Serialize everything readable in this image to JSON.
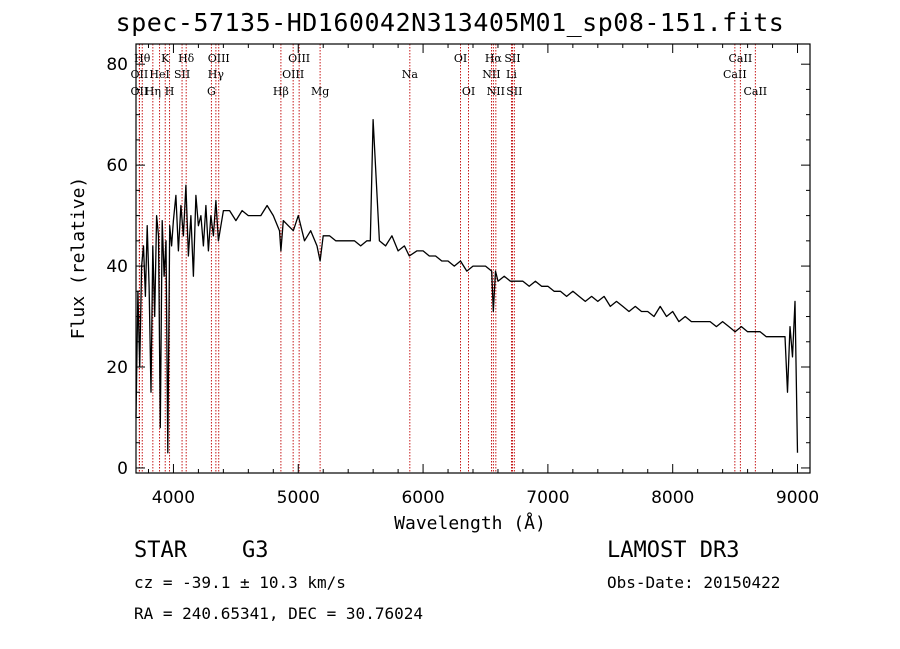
{
  "chart_data": {
    "type": "line",
    "title": "spec-57135-HD160042N313405M01_sp08-151.fits",
    "xlabel": "Wavelength (Å)",
    "ylabel": "Flux (relative)",
    "xlim": [
      3700,
      9100
    ],
    "ylim": [
      -1,
      84
    ],
    "xticks": [
      4000,
      5000,
      6000,
      7000,
      8000,
      9000
    ],
    "yticks": [
      0,
      20,
      40,
      60,
      80
    ],
    "series": [
      {
        "name": "spectrum",
        "x": [
          3700,
          3715,
          3730,
          3745,
          3760,
          3775,
          3790,
          3805,
          3820,
          3835,
          3850,
          3865,
          3880,
          3895,
          3910,
          3925,
          3940,
          3955,
          3970,
          3985,
          4000,
          4020,
          4040,
          4060,
          4080,
          4100,
          4120,
          4140,
          4160,
          4180,
          4200,
          4220,
          4240,
          4260,
          4280,
          4300,
          4320,
          4340,
          4360,
          4380,
          4400,
          4450,
          4500,
          4550,
          4600,
          4650,
          4700,
          4750,
          4800,
          4850,
          4861,
          4880,
          4920,
          4960,
          5000,
          5050,
          5100,
          5150,
          5175,
          5200,
          5250,
          5300,
          5350,
          5400,
          5450,
          5500,
          5550,
          5577,
          5600,
          5650,
          5700,
          5750,
          5800,
          5850,
          5890,
          5950,
          6000,
          6050,
          6100,
          6150,
          6200,
          6250,
          6300,
          6350,
          6400,
          6450,
          6500,
          6550,
          6563,
          6580,
          6600,
          6650,
          6700,
          6750,
          6800,
          6850,
          6900,
          6950,
          7000,
          7050,
          7100,
          7150,
          7200,
          7250,
          7300,
          7350,
          7400,
          7450,
          7500,
          7550,
          7600,
          7650,
          7700,
          7750,
          7800,
          7850,
          7900,
          7950,
          8000,
          8050,
          8100,
          8150,
          8200,
          8250,
          8300,
          8350,
          8400,
          8450,
          8500,
          8550,
          8600,
          8650,
          8700,
          8750,
          8800,
          8850,
          8900,
          8920,
          8940,
          8960,
          8980,
          9000
        ],
        "values": [
          10,
          35,
          20,
          40,
          44,
          34,
          48,
          36,
          15,
          44,
          30,
          50,
          46,
          8,
          49,
          38,
          45,
          3,
          48,
          44,
          49,
          54,
          43,
          52,
          46,
          56,
          42,
          50,
          38,
          54,
          48,
          50,
          44,
          52,
          43,
          50,
          46,
          53,
          45,
          48,
          51,
          51,
          49,
          51,
          50,
          50,
          50,
          52,
          50,
          47,
          43,
          49,
          48,
          47,
          50,
          45,
          47,
          44,
          41,
          46,
          46,
          45,
          45,
          45,
          45,
          44,
          45,
          45,
          69,
          45,
          44,
          46,
          43,
          44,
          42,
          43,
          43,
          42,
          42,
          41,
          41,
          40,
          41,
          39,
          40,
          40,
          40,
          39,
          31,
          39,
          37,
          38,
          37,
          37,
          37,
          36,
          37,
          36,
          36,
          35,
          35,
          34,
          35,
          34,
          33,
          34,
          33,
          34,
          32,
          33,
          32,
          31,
          32,
          31,
          31,
          30,
          32,
          30,
          31,
          29,
          30,
          29,
          29,
          29,
          29,
          28,
          29,
          28,
          27,
          28,
          27,
          27,
          27,
          26,
          26,
          26,
          26,
          15,
          28,
          22,
          33,
          3
        ]
      }
    ],
    "line_markers": [
      {
        "label": "OII",
        "x": 3727,
        "row": 2
      },
      {
        "label": "Hθ",
        "x": 3750,
        "row": 1
      },
      {
        "label": "OII",
        "x": 3727,
        "row": 3
      },
      {
        "label": "Hη",
        "x": 3835,
        "row": 3
      },
      {
        "label": "HeI",
        "x": 3889,
        "row": 2
      },
      {
        "label": "K",
        "x": 3934,
        "row": 1
      },
      {
        "label": "H",
        "x": 3969,
        "row": 3
      },
      {
        "label": "SII",
        "x": 4069,
        "row": 2
      },
      {
        "label": "Hδ",
        "x": 4102,
        "row": 1
      },
      {
        "label": "G",
        "x": 4304,
        "row": 3
      },
      {
        "label": "Hγ",
        "x": 4340,
        "row": 2
      },
      {
        "label": "OIII",
        "x": 4363,
        "row": 1
      },
      {
        "label": "Hβ",
        "x": 4861,
        "row": 3
      },
      {
        "label": "OIII",
        "x": 4959,
        "row": 2
      },
      {
        "label": "OIII",
        "x": 5007,
        "row": 1
      },
      {
        "label": "Mg",
        "x": 5175,
        "row": 3
      },
      {
        "label": "Na",
        "x": 5894,
        "row": 2
      },
      {
        "label": "OI",
        "x": 6300,
        "row": 1
      },
      {
        "label": "OI",
        "x": 6364,
        "row": 3
      },
      {
        "label": "NII",
        "x": 6548,
        "row": 2
      },
      {
        "label": "Hα",
        "x": 6563,
        "row": 1
      },
      {
        "label": "NII",
        "x": 6583,
        "row": 3
      },
      {
        "label": "Li",
        "x": 6708,
        "row": 2
      },
      {
        "label": "SII",
        "x": 6716,
        "row": 1
      },
      {
        "label": "SII",
        "x": 6731,
        "row": 3
      },
      {
        "label": "CaII",
        "x": 8498,
        "row": 2
      },
      {
        "label": "CaII",
        "x": 8542,
        "row": 1
      },
      {
        "label": "CaII",
        "x": 8662,
        "row": 3
      }
    ]
  },
  "info": {
    "object_class": "STAR",
    "subclass": "G3",
    "cz_text": "cz = -39.1 ± 10.3 km/s",
    "coords_text": "RA = 240.65341, DEC =  30.76024",
    "survey": "LAMOST DR3",
    "obs_date_text": "Obs-Date: 20150422"
  },
  "colors": {
    "marker": "#c00000",
    "spectrum": "#000000",
    "axis": "#000000"
  }
}
